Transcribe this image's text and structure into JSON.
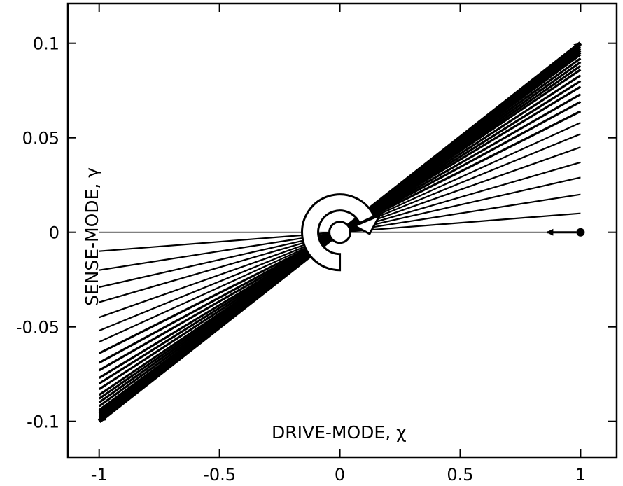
{
  "chart_data": {
    "type": "line",
    "title": "",
    "xlabel": "DRIVE-MODE, χ",
    "ylabel": "SENSE-MODE, γ",
    "xlim": [
      -1.13,
      1.15
    ],
    "ylim": [
      -0.119,
      0.121
    ],
    "x_ticks": [
      -1,
      -0.5,
      0,
      0.5,
      1
    ],
    "x_tick_labels": [
      "-1",
      "-0.5",
      "0",
      "0.5",
      "1"
    ],
    "y_ticks": [
      -0.1,
      -0.05,
      0,
      0.05,
      0.1
    ],
    "y_tick_labels": [
      "-0.1",
      "-0.05",
      "0",
      "0.05",
      "0.1"
    ],
    "grid": false,
    "legend": "none",
    "colors": {
      "line": "#000000",
      "background": "#ffffff"
    },
    "series": [
      {
        "values_description_free": true,
        "x": [
          1,
          -1
        ],
        "y_end_amplitudes": [
          0,
          0.01,
          0.02,
          0.029,
          0.037,
          0.045,
          0.052,
          0.058,
          0.064,
          0.069,
          0.073,
          0.077,
          0.08,
          0.083,
          0.086,
          0.088,
          0.09,
          0.092,
          0.094,
          0.095,
          0.096,
          0.097,
          0.098,
          0.099,
          0.1
        ]
      }
    ],
    "start_point": {
      "x": 1,
      "y": 0
    },
    "center_point": {
      "x": 0,
      "y": 0
    }
  }
}
